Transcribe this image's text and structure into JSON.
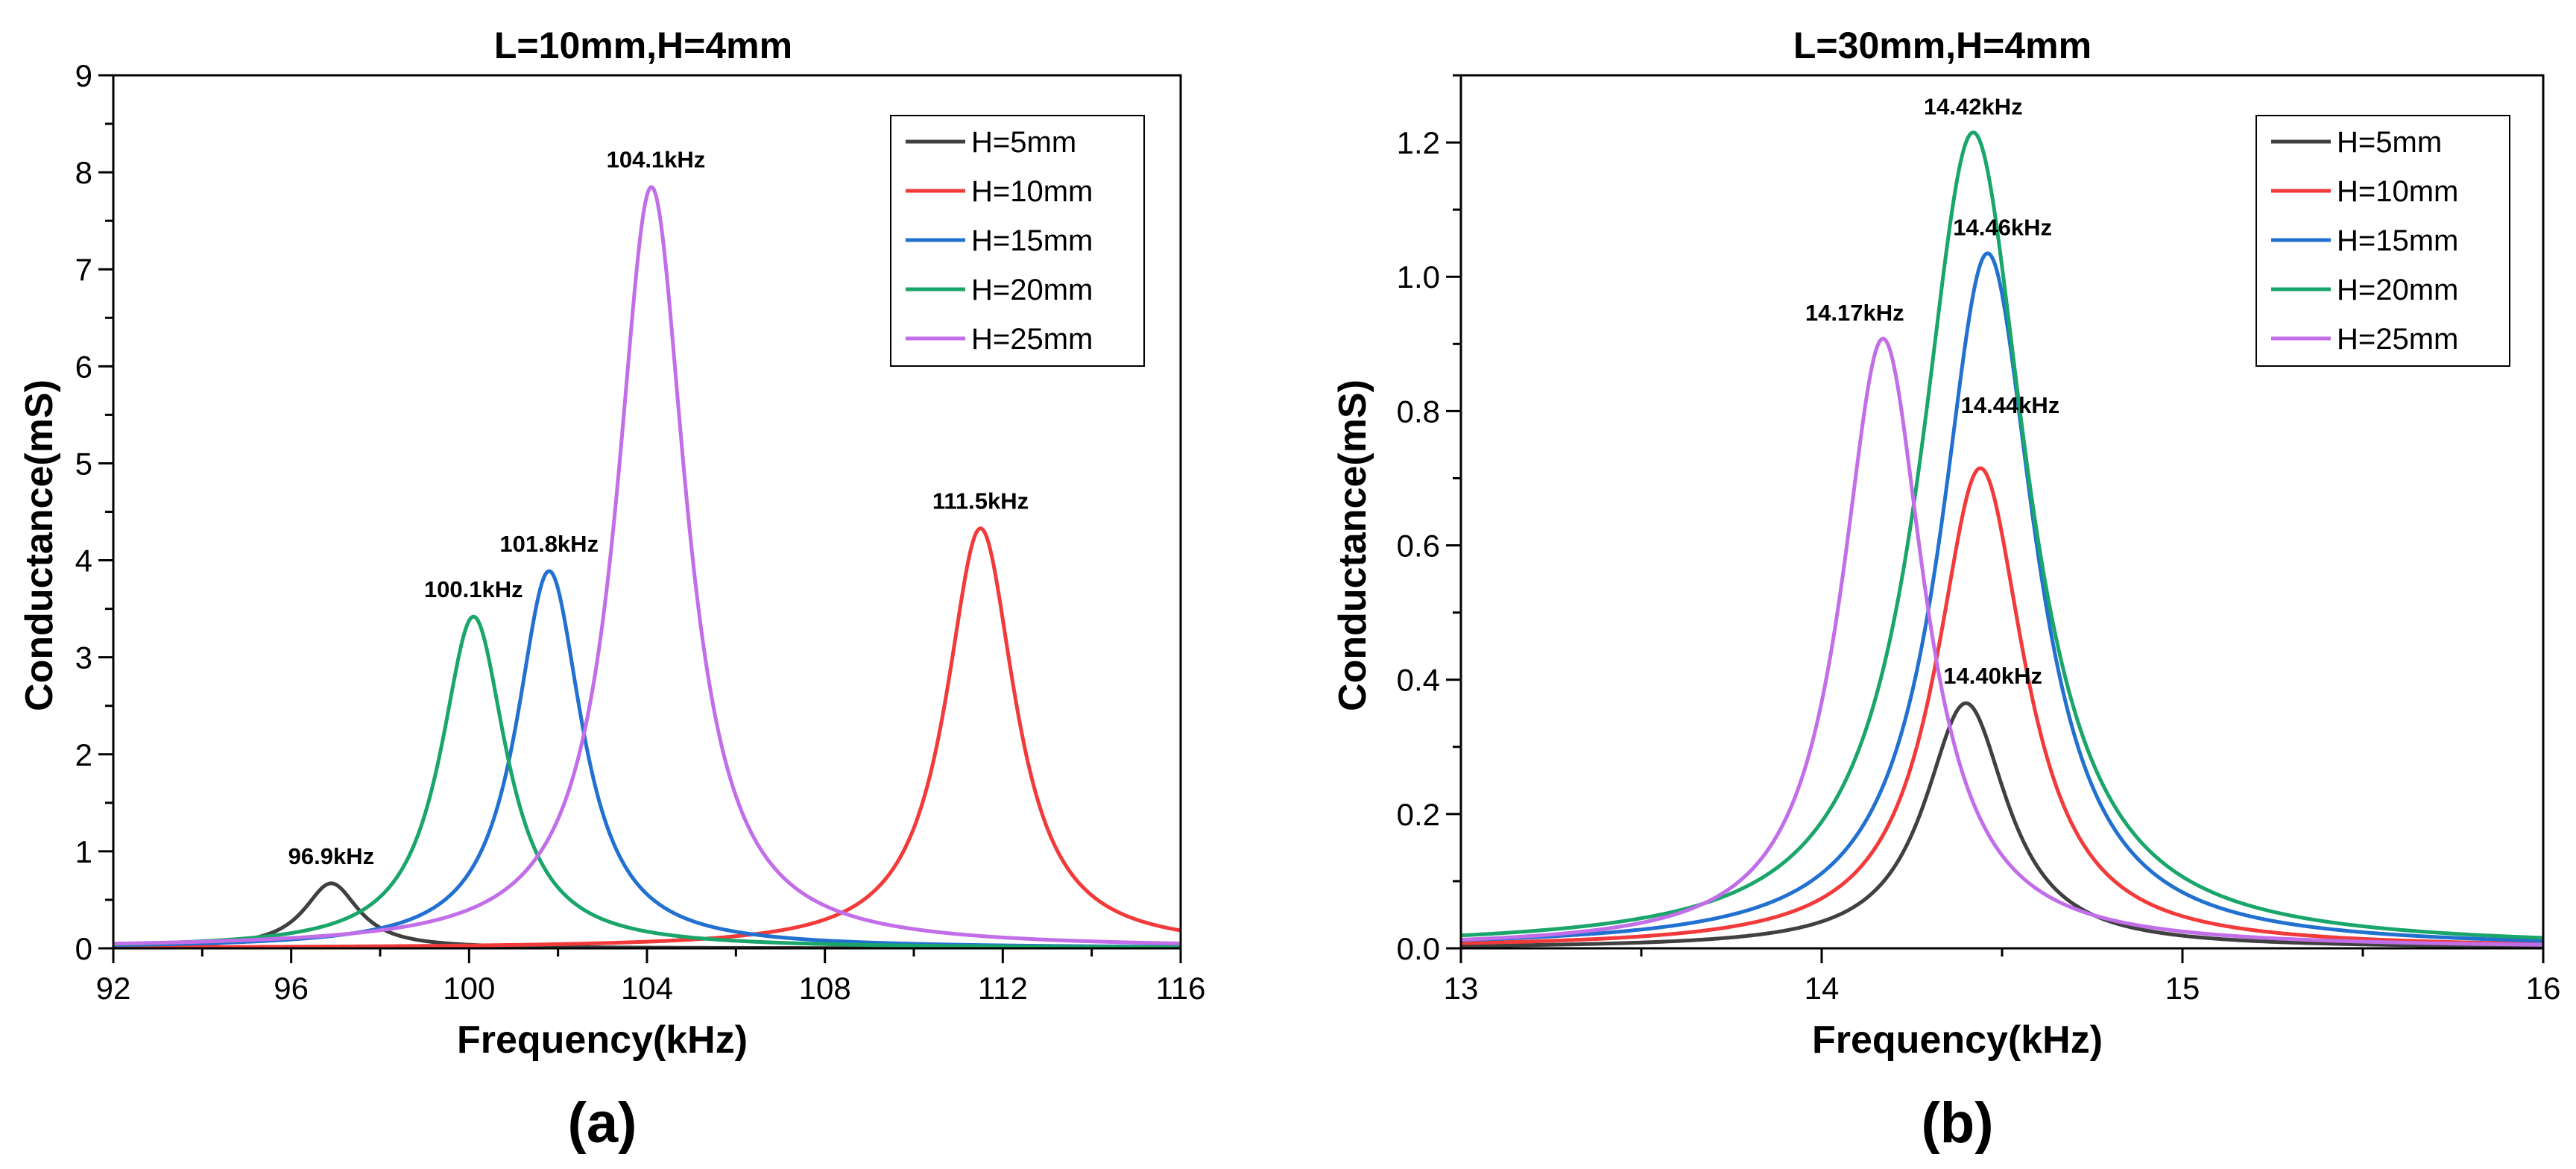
{
  "colors": {
    "H=5mm": "#404040",
    "H=10mm": "#f23a3a",
    "H=15mm": "#2271d0",
    "H=20mm": "#1aa66a",
    "H=25mm": "#c16ee8"
  },
  "chart_data": [
    {
      "type": "line",
      "panel_label": "(a)",
      "title": "L=10mm,H=4mm",
      "xlabel": "Frequency(kHz)",
      "ylabel": "Conductance(mS)",
      "xlim": [
        92,
        116
      ],
      "ylim": [
        0,
        9
      ],
      "xticks": [
        92,
        96,
        100,
        104,
        108,
        112,
        116
      ],
      "xtick_labels": [
        "92",
        "96",
        "100",
        "104",
        "108",
        "112",
        "116"
      ],
      "yticks": [
        0,
        1,
        2,
        3,
        4,
        5,
        6,
        7,
        8,
        9
      ],
      "ytick_labels": [
        "0",
        "1",
        "2",
        "3",
        "4",
        "5",
        "6",
        "7",
        "8",
        "9"
      ],
      "legend_position": "top-right",
      "series": [
        {
          "name": "H=5mm",
          "peak_x": 96.9,
          "peak_y": 0.67,
          "width": 0.75,
          "peak_label": "96.9kHz"
        },
        {
          "name": "H=10mm",
          "peak_x": 111.5,
          "peak_y": 4.33,
          "width": 0.95,
          "peak_label": "111.5kHz"
        },
        {
          "name": "H=15mm",
          "peak_x": 101.8,
          "peak_y": 3.89,
          "width": 0.9,
          "peak_label": "101.8kHz"
        },
        {
          "name": "H=20mm",
          "peak_x": 100.1,
          "peak_y": 3.42,
          "width": 0.9,
          "peak_label": "100.1kHz"
        },
        {
          "name": "H=25mm",
          "peak_x": 104.1,
          "peak_y": 7.85,
          "width": 0.95,
          "peak_label": "104.1kHz"
        }
      ]
    },
    {
      "type": "line",
      "panel_label": "(b)",
      "title": "L=30mm,H=4mm",
      "xlabel": "Frequency(kHz)",
      "ylabel": "Conductance(mS)",
      "xlim": [
        13,
        16
      ],
      "ylim": [
        0,
        1.3
      ],
      "xticks": [
        13,
        14,
        15,
        16
      ],
      "xtick_labels": [
        "13",
        "14",
        "15",
        "16"
      ],
      "yticks": [
        0,
        0.2,
        0.4,
        0.6,
        0.8,
        1.0,
        1.2
      ],
      "ytick_labels": [
        "0.0",
        "0.2",
        "0.4",
        "0.6",
        "0.8",
        "1.0",
        "1.2"
      ],
      "legend_position": "top-right",
      "series": [
        {
          "name": "H=5mm",
          "peak_x": 14.4,
          "peak_y": 0.365,
          "width": 0.14,
          "peak_label": "14.40kHz"
        },
        {
          "name": "H=10mm",
          "peak_x": 14.44,
          "peak_y": 0.715,
          "width": 0.15,
          "peak_label": "14.44kHz"
        },
        {
          "name": "H=15mm",
          "peak_x": 14.46,
          "peak_y": 1.035,
          "width": 0.16,
          "peak_label": "14.46kHz"
        },
        {
          "name": "H=20mm",
          "peak_x": 14.42,
          "peak_y": 1.215,
          "width": 0.18,
          "peak_label": "14.42kHz"
        },
        {
          "name": "H=25mm",
          "peak_x": 14.17,
          "peak_y": 0.908,
          "width": 0.14,
          "peak_label": "14.17kHz"
        }
      ]
    }
  ]
}
